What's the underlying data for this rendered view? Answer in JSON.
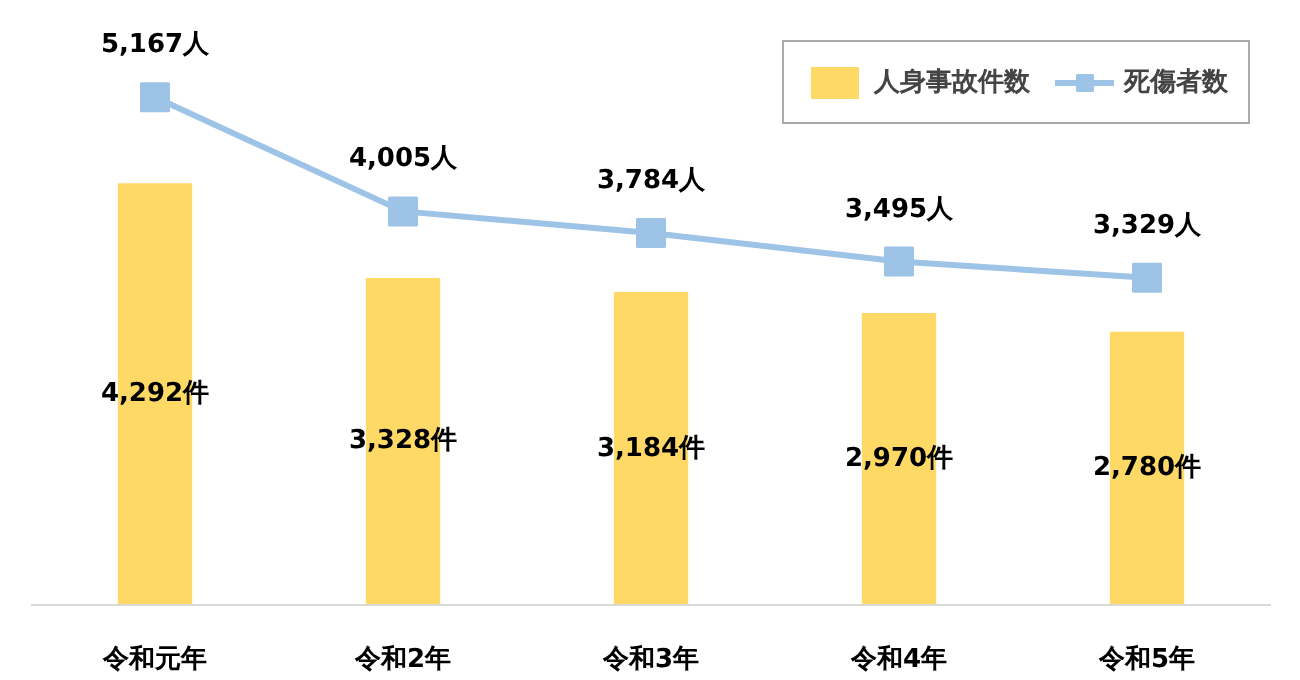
{
  "chart_data": {
    "type": "bar",
    "categories": [
      "令和元年",
      "令和2年",
      "令和3年",
      "令和4年",
      "令和5年"
    ],
    "series": [
      {
        "name": "人身事故件数",
        "color": "#ffd966",
        "values": [
          4292,
          3328,
          3184,
          2970,
          2780
        ],
        "value_labels": [
          "4,292件",
          "3,328件",
          "3,184件",
          "2,970件",
          "2,780件"
        ]
      },
      {
        "name": "死傷者数",
        "type": "line",
        "color": "#9dc3e6",
        "marker": "square",
        "values": [
          5167,
          4005,
          3784,
          3495,
          3329
        ],
        "value_labels": [
          "5,167人",
          "4,005人",
          "3,784人",
          "3,495人",
          "3,329人"
        ]
      }
    ],
    "tick_labels": "x",
    "grid": false,
    "legend": "top right"
  }
}
